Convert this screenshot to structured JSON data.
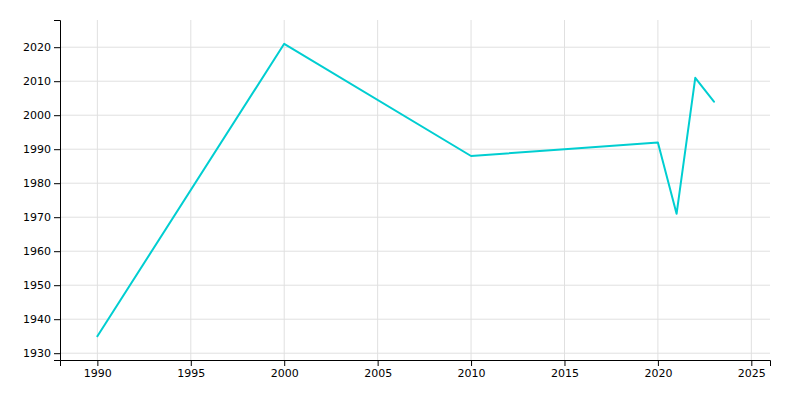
{
  "chart_data": {
    "type": "line",
    "x": [
      1990,
      2000,
      2010,
      2015,
      2020,
      2021,
      2022,
      2023
    ],
    "values": [
      1935,
      2021,
      1988,
      1990,
      1992,
      1971,
      2011,
      2004
    ],
    "color": "#00CED1",
    "xlim": [
      1988,
      2026
    ],
    "ylim": [
      1928,
      2028
    ],
    "xticks": [
      1990,
      1995,
      2000,
      2005,
      2010,
      2015,
      2020,
      2025
    ],
    "yticks": [
      1930,
      1940,
      1950,
      1960,
      1970,
      1980,
      1990,
      2000,
      2010,
      2020
    ],
    "grid": true
  }
}
